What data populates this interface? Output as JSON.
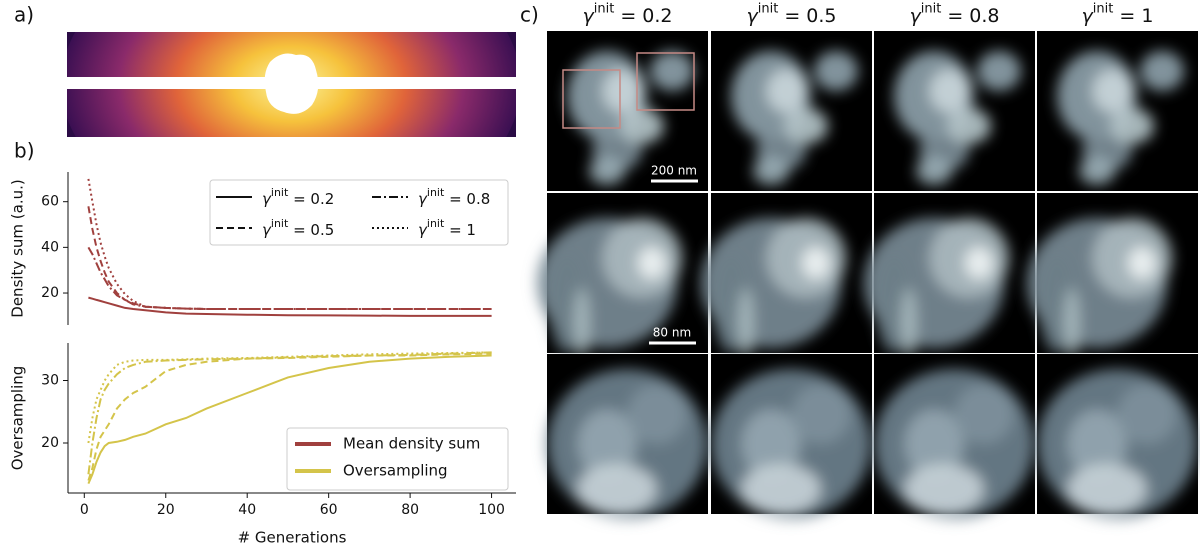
{
  "panel_labels": [
    "a)",
    "b)",
    "c)"
  ],
  "gamma_legend": [
    {
      "symbol": "γ",
      "superscript": "init",
      "text": " = 0.2",
      "dash": "solid"
    },
    {
      "symbol": "γ",
      "superscript": "init",
      "text": " = 0.5",
      "dash": "dashed"
    },
    {
      "symbol": "γ",
      "superscript": "init",
      "text": " = 0.8",
      "dash": "dashdot"
    },
    {
      "symbol": "γ",
      "superscript": "init",
      "text": " = 1",
      "dash": "dotted"
    }
  ],
  "scale_bars": [
    "200 nm",
    "80 nm"
  ],
  "chart_data": [
    {
      "type": "line",
      "ylabel": "Density sum (a.u.)",
      "color": "#a0403e",
      "x": [
        1,
        2,
        3,
        4,
        5,
        6,
        8,
        10,
        12,
        15,
        20,
        25,
        30,
        40,
        50,
        60,
        70,
        80,
        90,
        100
      ],
      "xlim": [
        -4,
        106
      ],
      "ylim": [
        6,
        73
      ],
      "yticks": [
        20,
        40,
        60
      ],
      "series": [
        {
          "dash": "solid",
          "values": [
            18,
            17.5,
            17,
            16.5,
            16,
            15.5,
            14.5,
            13.5,
            13,
            12.5,
            11.5,
            11,
            10.8,
            10.5,
            10.3,
            10.2,
            10.1,
            10,
            10,
            10
          ]
        },
        {
          "dash": "dashed",
          "values": [
            58,
            48,
            40,
            34,
            29,
            25,
            20,
            17,
            15.5,
            14,
            13.5,
            13.2,
            13,
            13,
            13,
            13,
            13,
            13,
            13,
            13
          ]
        },
        {
          "dash": "dashdot",
          "values": [
            40,
            37,
            33,
            29,
            26,
            23,
            19,
            17,
            15,
            14,
            13.5,
            13.2,
            13,
            13,
            13,
            13,
            13,
            13,
            13,
            13
          ]
        },
        {
          "dash": "dotted",
          "values": [
            70,
            60,
            50,
            42,
            36,
            31,
            24,
            19.5,
            16.5,
            14,
            13.5,
            13.2,
            13,
            13,
            13,
            13,
            13,
            13,
            13,
            13
          ]
        }
      ]
    },
    {
      "type": "line",
      "ylabel": "Oversampling",
      "xlabel": "# Generations",
      "color": "#d4c44a",
      "x": [
        1,
        2,
        3,
        4,
        5,
        6,
        8,
        10,
        12,
        15,
        20,
        25,
        30,
        40,
        50,
        60,
        70,
        80,
        90,
        100
      ],
      "xlim": [
        -4,
        106
      ],
      "xticks": [
        0,
        20,
        40,
        60,
        80,
        100
      ],
      "ylim": [
        12,
        36
      ],
      "yticks": [
        20,
        30
      ],
      "series": [
        {
          "dash": "solid",
          "values": [
            13.5,
            15,
            17,
            18.5,
            19.5,
            20,
            20.2,
            20.5,
            21,
            21.5,
            23,
            24,
            25.5,
            28,
            30.5,
            32,
            33,
            33.5,
            33.8,
            34
          ]
        },
        {
          "dash": "dashed",
          "values": [
            14,
            16,
            19,
            21,
            22,
            23,
            25.5,
            27,
            28,
            29,
            31.5,
            32.5,
            33,
            33.5,
            33.6,
            33.8,
            34,
            34,
            34.2,
            34.3
          ]
        },
        {
          "dash": "dashdot",
          "values": [
            15,
            20,
            24,
            27,
            28.5,
            29.5,
            31,
            32,
            32.5,
            33,
            33.2,
            33.3,
            33.4,
            33.5,
            33.7,
            33.9,
            34,
            34.1,
            34.3,
            34.5
          ]
        },
        {
          "dash": "dotted",
          "values": [
            20,
            24,
            27,
            28.5,
            30,
            31,
            32.5,
            33,
            33.2,
            33.3,
            33.3,
            33.4,
            33.5,
            33.6,
            33.8,
            34,
            34.2,
            34.3,
            34.4,
            34.5
          ]
        }
      ],
      "legend": [
        {
          "name": "Mean density sum",
          "color": "#a0403e"
        },
        {
          "name": "Oversampling",
          "color": "#d4c44a"
        }
      ]
    }
  ]
}
